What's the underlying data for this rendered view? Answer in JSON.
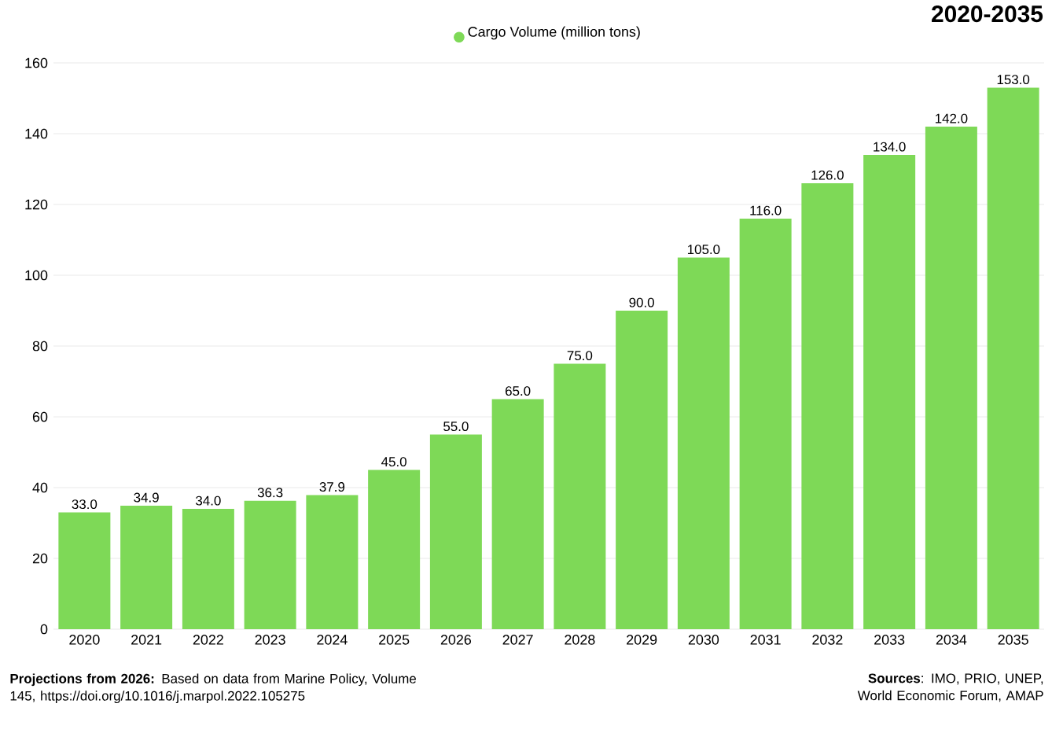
{
  "chart_data": {
    "type": "bar",
    "title": "2020-2035",
    "categories": [
      "2020",
      "2021",
      "2022",
      "2023",
      "2024",
      "2025",
      "2026",
      "2027",
      "2028",
      "2029",
      "2030",
      "2031",
      "2032",
      "2033",
      "2034",
      "2035"
    ],
    "series": [
      {
        "name": "Cargo Volume (million tons)",
        "color": "#7ed957",
        "values": [
          33.0,
          34.9,
          34.0,
          36.3,
          37.9,
          45.0,
          55.0,
          65.0,
          75.0,
          90.0,
          105.0,
          116.0,
          126.0,
          134.0,
          142.0,
          153.0
        ]
      }
    ],
    "value_labels": [
      "33.0",
      "34.9",
      "34.0",
      "36.3",
      "37.9",
      "45.0",
      "55.0",
      "65.0",
      "75.0",
      "90.0",
      "105.0",
      "116.0",
      "126.0",
      "134.0",
      "142.0",
      "153.0"
    ],
    "ylim": [
      0,
      160
    ],
    "yticks": [
      0,
      20,
      40,
      60,
      80,
      100,
      120,
      140,
      160
    ],
    "grid": "y",
    "legend": "top",
    "annotations": [
      "**Projections from 2026:** Based on data from Marine Policy, Volume 145, https://doi.org/10.1016/j.marpol.2022.105275",
      "**Sources**: IMO, PRIO, UNEP, World Economic Forum, AMAP"
    ]
  }
}
